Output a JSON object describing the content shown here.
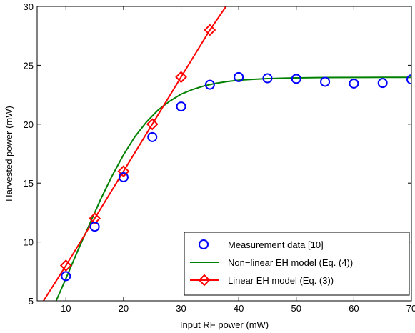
{
  "chart_data": {
    "type": "line",
    "xlabel": "Input RF power (mW)",
    "ylabel": "Harvested power (mW)",
    "xlim": [
      5,
      70
    ],
    "ylim": [
      5,
      30
    ],
    "xticks": [
      10,
      20,
      30,
      40,
      50,
      60,
      70
    ],
    "yticks": [
      5,
      10,
      15,
      20,
      25,
      30
    ],
    "grid": false,
    "legend_position": "bottom-right",
    "series": [
      {
        "name": "Measurement data [10]",
        "style": "markers",
        "marker": "circle",
        "color": "#0000ff",
        "x": [
          10,
          15,
          20,
          25,
          30,
          35,
          40,
          45,
          50,
          55,
          60,
          65,
          70
        ],
        "y": [
          7.1,
          11.3,
          15.5,
          18.9,
          21.5,
          23.35,
          24.0,
          23.9,
          23.85,
          23.6,
          23.45,
          23.5,
          23.8
        ]
      },
      {
        "name": "Non−linear EH model (Eq. (4))",
        "style": "line",
        "color": "#008000",
        "x": [
          8.3,
          10,
          12,
          14,
          16,
          18,
          20,
          22,
          24,
          26,
          28,
          30,
          32,
          34,
          36,
          38,
          40,
          42,
          45,
          48,
          50,
          55,
          60,
          65,
          70
        ],
        "y": [
          5.0,
          6.9,
          9.2,
          11.4,
          13.6,
          15.6,
          17.4,
          18.95,
          20.2,
          21.2,
          21.95,
          22.55,
          22.95,
          23.25,
          23.47,
          23.62,
          23.73,
          23.8,
          23.87,
          23.91,
          23.93,
          23.96,
          23.97,
          23.98,
          23.98
        ]
      },
      {
        "name": "Linear EH model (Eq. (3))",
        "style": "line+markers",
        "marker": "diamond",
        "color": "#ff0000",
        "x": [
          6.1,
          10,
          15,
          20,
          25,
          30,
          35,
          37.8
        ],
        "y": [
          5.0,
          8.0,
          12.0,
          16.0,
          20.0,
          24.0,
          28.0,
          30.0
        ],
        "marker_x": [
          10,
          15,
          20,
          25,
          30,
          35
        ],
        "marker_y": [
          8,
          12,
          16,
          20,
          24,
          28
        ]
      }
    ]
  }
}
